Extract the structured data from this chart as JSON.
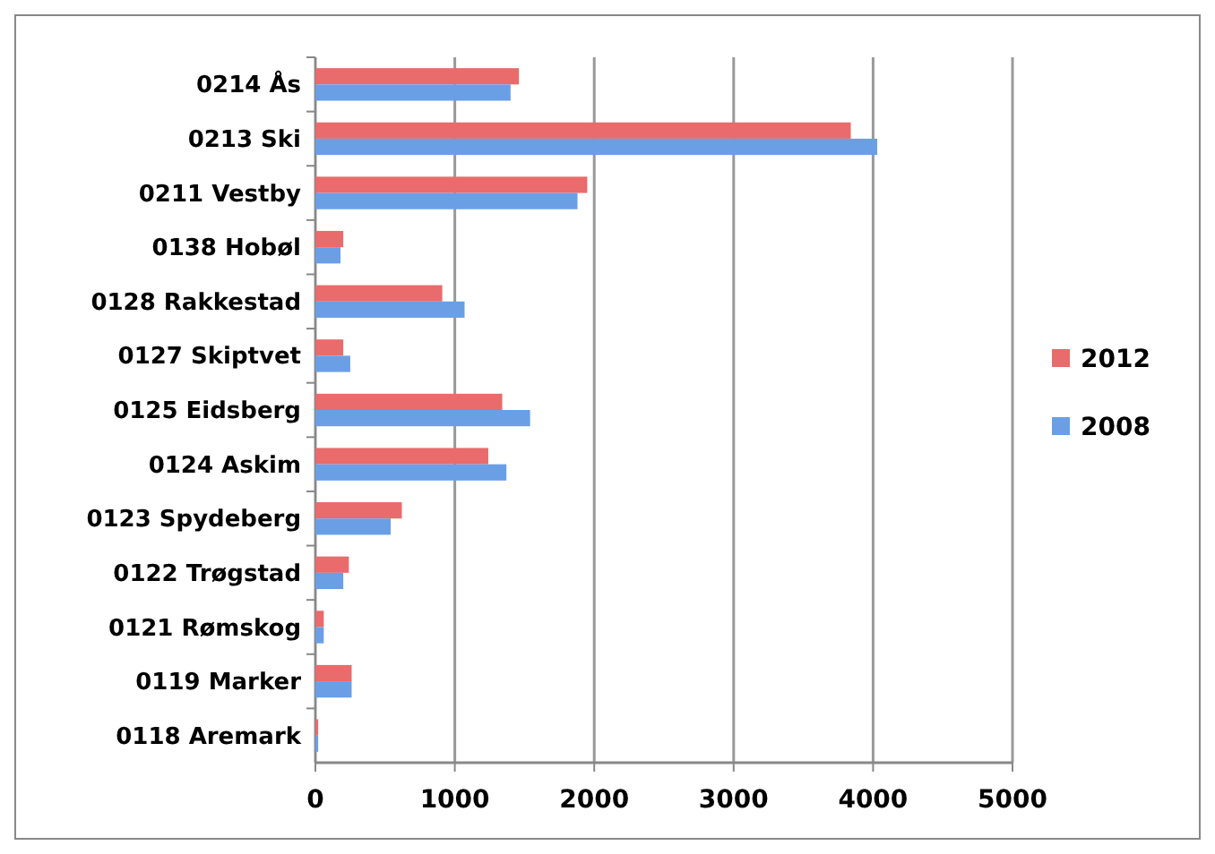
{
  "chart_data": {
    "type": "bar",
    "orientation": "horizontal",
    "categories": [
      "0214 Ås",
      "0213 Ski",
      "0211 Vestby",
      "0138 Hobøl",
      "0128 Rakkestad",
      "0127 Skiptvet",
      "0125 Eidsberg",
      "0124 Askim",
      "0123 Spydeberg",
      "0122 Trøgstad",
      "0121 Rømskog",
      "0119 Marker",
      "0118 Aremark"
    ],
    "series": [
      {
        "name": "2012",
        "color": "#e96b6b",
        "values": [
          1460,
          3840,
          1950,
          200,
          910,
          200,
          1340,
          1240,
          620,
          240,
          60,
          260,
          20
        ]
      },
      {
        "name": "2008",
        "color": "#6a9fe6",
        "values": [
          1400,
          4030,
          1880,
          180,
          1070,
          250,
          1540,
          1370,
          540,
          200,
          60,
          260,
          20
        ]
      }
    ],
    "xlim": [
      0,
      5000
    ],
    "xticks": [
      0,
      1000,
      2000,
      3000,
      4000,
      5000
    ],
    "grid": "x",
    "legend": "right"
  }
}
